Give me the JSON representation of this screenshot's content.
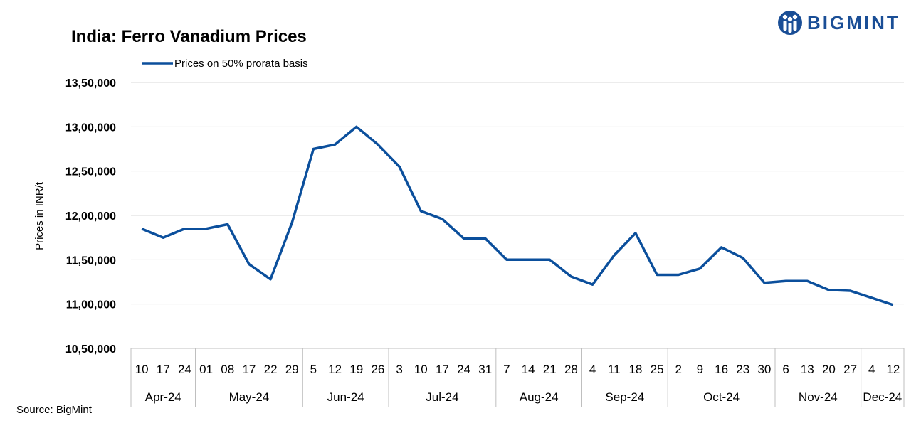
{
  "brand": {
    "name": "BIGMINT",
    "icon": "bigmint-logo-icon",
    "color": "#1a4e96"
  },
  "source": "Source: BigMint",
  "chart_data": {
    "type": "line",
    "title": "India: Ferro Vanadium Prices",
    "ylabel": "Prices in INR/t",
    "xlabel": "",
    "ylim": [
      1050000,
      1350000
    ],
    "yticks": [
      1050000,
      1100000,
      1150000,
      1200000,
      1250000,
      1300000,
      1350000
    ],
    "ytick_labels": [
      "10,50,000",
      "11,00,000",
      "11,50,000",
      "12,00,000",
      "12,50,000",
      "13,00,000",
      "13,50,000"
    ],
    "grid": true,
    "legend": "top-left",
    "categories": [
      "10",
      "17",
      "24",
      "01",
      "08",
      "17",
      "22",
      "29",
      "5",
      "12",
      "19",
      "26",
      "3",
      "10",
      "17",
      "24",
      "31",
      "7",
      "14",
      "21",
      "28",
      "4",
      "11",
      "18",
      "25",
      "2",
      "9",
      "16",
      "23",
      "30",
      "6",
      "13",
      "20",
      "27",
      "4",
      "12"
    ],
    "months": [
      {
        "label": "Apr-24",
        "count": 3
      },
      {
        "label": "May-24",
        "count": 5
      },
      {
        "label": "Jun-24",
        "count": 4
      },
      {
        "label": "Jul-24",
        "count": 5
      },
      {
        "label": "Aug-24",
        "count": 4
      },
      {
        "label": "Sep-24",
        "count": 4
      },
      {
        "label": "Oct-24",
        "count": 5
      },
      {
        "label": "Nov-24",
        "count": 4
      },
      {
        "label": "Dec-24",
        "count": 2
      }
    ],
    "series": [
      {
        "name": "Prices on 50% prorata basis",
        "color": "#0b4f9c",
        "values": [
          1185000,
          1175000,
          1185000,
          1185000,
          1190000,
          1145000,
          1128000,
          1192000,
          1275000,
          1280000,
          1300000,
          1280000,
          1255000,
          1205000,
          1196000,
          1174000,
          1174000,
          1150000,
          1150000,
          1150000,
          1131000,
          1122000,
          1155000,
          1180000,
          1133000,
          1133000,
          1140000,
          1164000,
          1152000,
          1124000,
          1126000,
          1126000,
          1116000,
          1115000,
          1107000,
          1099000
        ]
      }
    ]
  }
}
